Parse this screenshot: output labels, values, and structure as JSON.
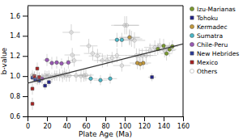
{
  "chart_data": {
    "type": "scatter",
    "xlabel": "Plate Age (Ma)",
    "ylabel": "b-value",
    "xlim": [
      0,
      160
    ],
    "ylim": [
      0.6,
      1.7
    ],
    "xticks": [
      0,
      20,
      40,
      60,
      80,
      100,
      120,
      140,
      160
    ],
    "yticks": [
      0.6,
      0.8,
      {
        "value": 1.0,
        "label": "1.0"
      },
      1.2,
      1.4,
      1.6
    ],
    "grid": false,
    "legend": "right",
    "series": [
      {
        "name": "Izu-Marianas",
        "color": "#7a9a2e",
        "marker": "circle",
        "x": [
          134,
          140,
          146,
          149,
          143
        ],
        "values": [
          1.27,
          1.3,
          1.265,
          1.295,
          1.225
        ],
        "xerr": [
          7,
          7,
          7,
          6,
          6
        ],
        "yerr": [
          0.06,
          0.07,
          0.07,
          0.06,
          0.07
        ]
      },
      {
        "name": "Tohoku",
        "color": "#22228b",
        "marker": "square",
        "x": [
          128,
          22,
          18
        ],
        "values": [
          0.99,
          0.94,
          0.905
        ],
        "xerr": [
          4,
          3,
          3
        ],
        "yerr": [
          0.04,
          0.04,
          0.04
        ]
      },
      {
        "name": "Kermadec",
        "color": "#c49a3c",
        "marker": "circle",
        "x": [
          105,
          113,
          119,
          116
        ],
        "values": [
          1.385,
          1.13,
          1.13,
          1.12
        ],
        "xerr": [
          10,
          8,
          8,
          8
        ],
        "yerr": [
          0.07,
          0.06,
          0.06,
          0.06
        ]
      },
      {
        "name": "Sumatra",
        "color": "#4ab8c8",
        "marker": "circle",
        "x": [
          65,
          75,
          85,
          92,
          97
        ],
        "values": [
          0.975,
          0.96,
          0.975,
          1.36,
          1.36
        ],
        "xerr": [
          7,
          7,
          7,
          8,
          8
        ],
        "yerr": [
          0.05,
          0.05,
          0.05,
          0.07,
          0.07
        ]
      },
      {
        "name": "Chile-Peru",
        "color": "#9b59b6",
        "marker": "circle",
        "x": [
          20,
          25,
          30,
          35,
          15,
          10,
          42
        ],
        "values": [
          1.16,
          1.13,
          1.135,
          1.125,
          0.975,
          0.97,
          1.135
        ],
        "xerr": [
          4,
          4,
          5,
          5,
          3,
          3,
          5
        ],
        "yerr": [
          0.06,
          0.06,
          0.06,
          0.05,
          0.05,
          0.05,
          0.06
        ]
      },
      {
        "name": "New Hebrides",
        "color": "#2a3a9a",
        "marker": "square",
        "x": [
          5,
          8,
          12
        ],
        "values": [
          0.985,
          0.965,
          0.955
        ],
        "xerr": [
          2,
          2,
          2
        ],
        "yerr": [
          0.04,
          0.04,
          0.04
        ]
      },
      {
        "name": "Mexico",
        "color": "#aa2020",
        "marker": "square",
        "x": [
          5,
          5,
          7,
          10,
          12
        ],
        "values": [
          0.875,
          0.725,
          1.0,
          1.075,
          0.99
        ],
        "xerr": [
          2,
          2,
          2,
          2,
          2
        ],
        "yerr": [
          0.06,
          0.06,
          0.05,
          0.06,
          0.05
        ]
      },
      {
        "name": "Others",
        "color": "#999999",
        "marker": "open-circle",
        "x": [
          5,
          7,
          10,
          12,
          15,
          18,
          20,
          22,
          25,
          28,
          30,
          33,
          36,
          38,
          40,
          43,
          45,
          46,
          48,
          50,
          55,
          58,
          60,
          63,
          67,
          72,
          77,
          82,
          87,
          92,
          97,
          100,
          102,
          105,
          107,
          110,
          112,
          115,
          118,
          122,
          126,
          131,
          136,
          141
        ],
        "values": [
          1.01,
          0.99,
          0.96,
          0.975,
          0.975,
          1.005,
          1.0,
          1.005,
          0.985,
          1.005,
          1.005,
          1.01,
          1.0,
          1.025,
          1.005,
          1.005,
          1.435,
          1.21,
          1.155,
          1.005,
          1.0,
          1.005,
          1.01,
          1.3,
          1.225,
          1.2,
          1.155,
          1.155,
          1.18,
          1.205,
          1.105,
          1.505,
          1.505,
          1.385,
          1.37,
          1.355,
          1.205,
          1.205,
          1.205,
          1.205,
          1.255,
          1.285,
          1.305,
          1.255
        ],
        "xerr": [
          3,
          3,
          3,
          3,
          3,
          3,
          4,
          4,
          4,
          5,
          5,
          5,
          5,
          5,
          5,
          6,
          9,
          8,
          8,
          7,
          7,
          7,
          8,
          9,
          9,
          9,
          9,
          9,
          9,
          10,
          9,
          14,
          13,
          11,
          11,
          11,
          11,
          11,
          11,
          11,
          11,
          11,
          11,
          11
        ],
        "yerr": [
          0.05,
          0.05,
          0.05,
          0.05,
          0.05,
          0.05,
          0.05,
          0.05,
          0.05,
          0.05,
          0.05,
          0.06,
          0.06,
          0.06,
          0.06,
          0.06,
          0.08,
          0.07,
          0.06,
          0.06,
          0.06,
          0.06,
          0.06,
          0.07,
          0.07,
          0.07,
          0.07,
          0.06,
          0.06,
          0.07,
          0.06,
          0.09,
          0.09,
          0.08,
          0.08,
          0.08,
          0.07,
          0.07,
          0.07,
          0.07,
          0.07,
          0.07,
          0.07,
          0.07
        ]
      },
      {
        "type": "line",
        "color": "#333333",
        "x": [
          0,
          160
        ],
        "values": [
          0.93,
          1.32
        ]
      }
    ]
  }
}
